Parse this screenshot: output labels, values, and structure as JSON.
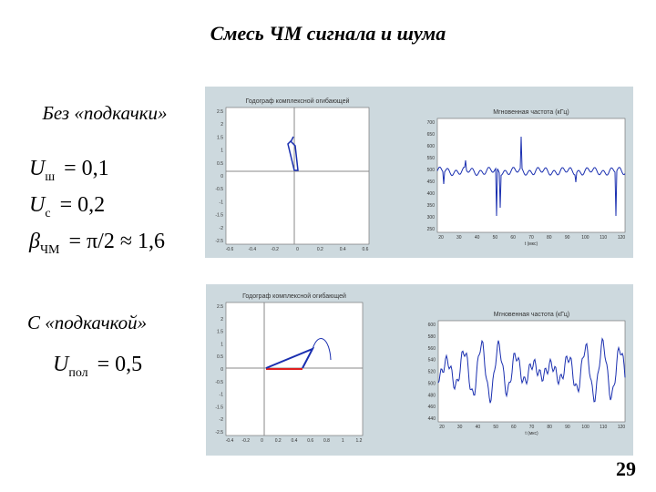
{
  "header": {
    "title": "Смесь ЧМ сигнала и шума"
  },
  "labels": [
    "Без «подкачки»",
    "С «подкачкой»"
  ],
  "formulas": [
    {
      "symbol": "U",
      "sub": "ш",
      "rhs": "= 0,1"
    },
    {
      "symbol": "U",
      "sub": "с",
      "rhs": "= 0,2"
    },
    {
      "symbol": "β",
      "sub": "ЧМ",
      "rhs": "= π/2 ≈ 1,6"
    },
    {
      "symbol": "U",
      "sub": "пол",
      "rhs": "= 0,5"
    }
  ],
  "plots": [
    {
      "title": "Годограф комплексной огибающей",
      "yticks": [
        "2.5",
        "2",
        "1.5",
        "1",
        "0.5",
        "0",
        "-0.5",
        "-1",
        "-1.5",
        "-2",
        "-2.5"
      ],
      "xticks": [
        "-0.6",
        "-0.4",
        "-0.2",
        "0",
        "0.2",
        "0.4",
        "0.6"
      ]
    },
    {
      "title": "Мгновенная частота (кГц)",
      "xlabel": "t (мкс)",
      "yticks": [
        "700",
        "650",
        "600",
        "550",
        "500",
        "450",
        "400",
        "350",
        "300",
        "250"
      ],
      "xticks": [
        "20",
        "30",
        "40",
        "50",
        "60",
        "70",
        "80",
        "90",
        "100",
        "110",
        "120"
      ]
    },
    {
      "title": "Годограф комплексной огибающей",
      "yticks": [
        "2.5",
        "2",
        "1.5",
        "1",
        "0.5",
        "0",
        "-0.5",
        "-1",
        "-1.5",
        "-2",
        "-2.5"
      ],
      "xticks": [
        "-0.4",
        "-0.2",
        "0",
        "0.2",
        "0.4",
        "0.6",
        "0.8",
        "1",
        "1.2"
      ]
    },
    {
      "title": "Мгновенная частота (кГц)",
      "xlabel": "t (мкс)",
      "yticks": [
        "600",
        "580",
        "560",
        "540",
        "520",
        "500",
        "480",
        "460",
        "440"
      ],
      "xticks": [
        "20",
        "30",
        "40",
        "50",
        "60",
        "70",
        "80",
        "90",
        "100",
        "110",
        "120"
      ]
    }
  ],
  "footer": {
    "page": "29"
  }
}
